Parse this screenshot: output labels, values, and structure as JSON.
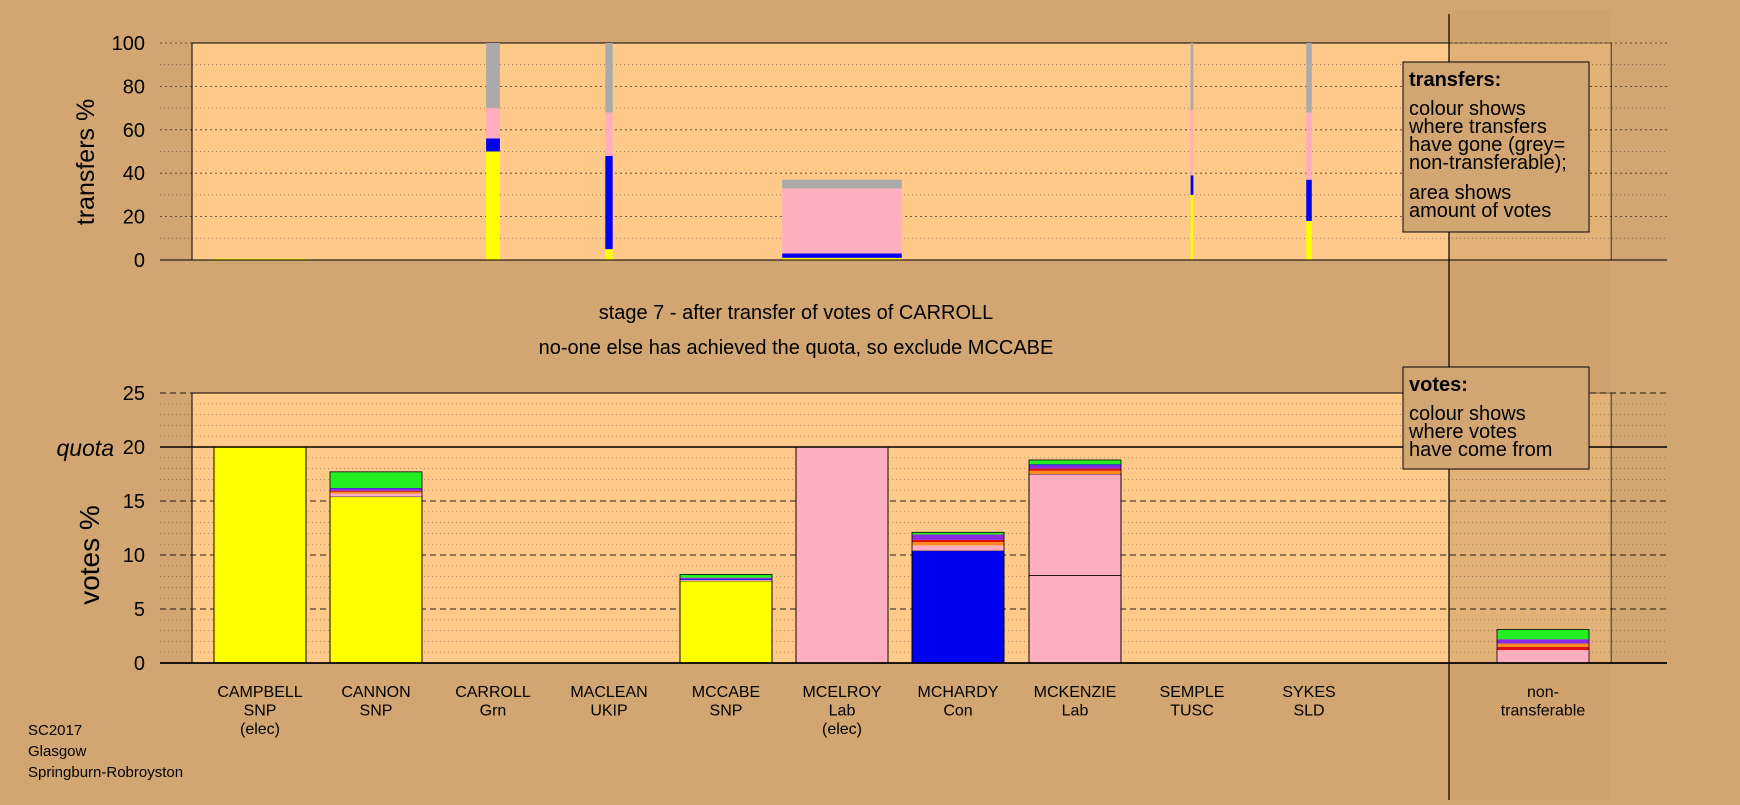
{
  "colors": {
    "page_bg": "#D2A673",
    "plot_bg": "#FFC98A",
    "shade_bg": "#CFA26B",
    "SNP": "#FFFF00",
    "Grn": "#22EE22",
    "Lab": "#FFAEC0",
    "Con": "#0000EE",
    "UKIP": "#8A2BE2",
    "SLD": "#FF8C1A",
    "TUSC": "#DD1111",
    "nontransferable": "#AAAAAA"
  },
  "stage_text": {
    "line1": "stage 7 - after transfer of votes of CARROLL",
    "line2": "no-one else has achieved the quota, so exclude MCCABE"
  },
  "footer": [
    "SC2017",
    "Glasgow",
    "Springburn-Robroyston"
  ],
  "legend_transfers": {
    "title": "transfers:",
    "lines": [
      "colour shows",
      "where transfers",
      "have gone (grey=",
      "non-transferable);",
      "area shows",
      "amount of votes"
    ]
  },
  "legend_votes": {
    "title": "votes:",
    "lines": [
      "colour shows",
      "where votes",
      "have come from"
    ]
  },
  "chart_data": [
    {
      "type": "bar",
      "ylabel": "transfers %",
      "ylim": [
        0,
        100
      ],
      "yticks": [
        0,
        20,
        40,
        60,
        80,
        100
      ],
      "categories": [
        "CAMPBELL",
        "CANNON",
        "CARROLL",
        "MACLEAN",
        "MCCABE",
        "MCELROY",
        "MCHARDY",
        "MCKENZIE",
        "SEMPLE",
        "SYKES"
      ],
      "transfers": [
        {
          "candidate": "CAMPBELL",
          "width": 1.0,
          "segments": [
            [
              "SNP",
              0.6
            ]
          ]
        },
        {
          "candidate": "CARROLL",
          "width": 0.15,
          "segments": [
            [
              "SNP",
              50
            ],
            [
              "Con",
              6
            ],
            [
              "Lab",
              14
            ],
            [
              "nontransferable",
              30
            ]
          ]
        },
        {
          "candidate": "MACLEAN",
          "width": 0.08,
          "segments": [
            [
              "SNP",
              5
            ],
            [
              "Con",
              43
            ],
            [
              "Lab",
              20
            ],
            [
              "nontransferable",
              32
            ]
          ]
        },
        {
          "candidate": "MCELROY",
          "width": 1.3,
          "segments": [
            [
              "SNP",
              1
            ],
            [
              "Con",
              2
            ],
            [
              "Lab",
              30
            ],
            [
              "nontransferable",
              4
            ]
          ]
        },
        {
          "candidate": "SEMPLE",
          "width": 0.03,
          "segments": [
            [
              "SNP",
              30
            ],
            [
              "Con",
              9
            ],
            [
              "Lab",
              30
            ],
            [
              "nontransferable",
              31
            ]
          ]
        },
        {
          "candidate": "SYKES",
          "width": 0.06,
          "segments": [
            [
              "SNP",
              18
            ],
            [
              "Con",
              19
            ],
            [
              "Lab",
              31
            ],
            [
              "nontransferable",
              32
            ]
          ]
        }
      ]
    },
    {
      "type": "bar",
      "ylabel": "votes %",
      "ylim": [
        0,
        25
      ],
      "yticks": [
        0,
        5,
        10,
        15,
        20,
        25
      ],
      "quota": 20,
      "quota_label": "quota",
      "categories": [
        "CAMPBELL",
        "CANNON",
        "CARROLL",
        "MACLEAN",
        "MCCABE",
        "MCELROY",
        "MCHARDY",
        "MCKENZIE",
        "SEMPLE",
        "SYKES",
        "non-transferable"
      ],
      "x_labels": [
        [
          "CAMPBELL",
          "SNP",
          "(elec)"
        ],
        [
          "CANNON",
          "SNP"
        ],
        [
          "CARROLL",
          "Grn"
        ],
        [
          "MACLEAN",
          "UKIP"
        ],
        [
          "MCCABE",
          "SNP"
        ],
        [
          "MCELROY",
          "Lab",
          "(elec)"
        ],
        [
          "MCHARDY",
          "Con"
        ],
        [
          "MCKENZIE",
          "Lab"
        ],
        [
          "SEMPLE",
          "TUSC"
        ],
        [
          "SYKES",
          "SLD"
        ],
        [
          "non-",
          "transferable"
        ]
      ],
      "votes": [
        {
          "candidate": "CAMPBELL",
          "segments": [
            [
              "SNP",
              20.0,
              1
            ]
          ]
        },
        {
          "candidate": "CANNON",
          "segments": [
            [
              "SNP",
              15.4,
              1
            ],
            [
              "Lab",
              0.3,
              0
            ],
            [
              "SLD",
              0.15,
              0
            ],
            [
              "TUSC",
              0.1,
              0
            ],
            [
              "UKIP",
              0.2,
              0
            ],
            [
              "Con",
              0.05,
              0
            ],
            [
              "Grn",
              1.5,
              0
            ]
          ]
        },
        {
          "candidate": "CARROLL",
          "segments": []
        },
        {
          "candidate": "MACLEAN",
          "segments": []
        },
        {
          "candidate": "MCCABE",
          "segments": [
            [
              "SNP",
              7.6,
              1
            ],
            [
              "Lab",
              0.1,
              0
            ],
            [
              "Con",
              0.1,
              0
            ],
            [
              "UKIP",
              0.1,
              0
            ],
            [
              "Grn",
              0.3,
              0
            ]
          ]
        },
        {
          "candidate": "MCELROY",
          "segments": [
            [
              "Lab",
              20.0,
              1
            ]
          ]
        },
        {
          "candidate": "MCHARDY",
          "segments": [
            [
              "Con",
              10.4,
              1
            ],
            [
              "Lab",
              0.5,
              0
            ],
            [
              "SLD",
              0.3,
              0
            ],
            [
              "TUSC",
              0.2,
              0
            ],
            [
              "UKIP",
              0.5,
              0
            ],
            [
              "Grn",
              0.2,
              0
            ]
          ]
        },
        {
          "candidate": "MCKENZIE",
          "segments": [
            [
              "Lab",
              8.1,
              1
            ],
            [
              "Lab",
              9.4,
              1
            ],
            [
              "SLD",
              0.3,
              0
            ],
            [
              "TUSC",
              0.2,
              0
            ],
            [
              "UKIP",
              0.3,
              0
            ],
            [
              "Con",
              0.1,
              0
            ],
            [
              "Grn",
              0.4,
              0
            ]
          ]
        },
        {
          "candidate": "SEMPLE",
          "segments": []
        },
        {
          "candidate": "SYKES",
          "segments": []
        },
        {
          "candidate": "non-transferable",
          "segments": [
            [
              "Lab",
              1.2,
              0
            ],
            [
              "TUSC",
              0.3,
              0
            ],
            [
              "SLD",
              0.3,
              0
            ],
            [
              "UKIP",
              0.4,
              0
            ],
            [
              "Grn",
              0.9,
              0
            ]
          ]
        }
      ]
    }
  ]
}
